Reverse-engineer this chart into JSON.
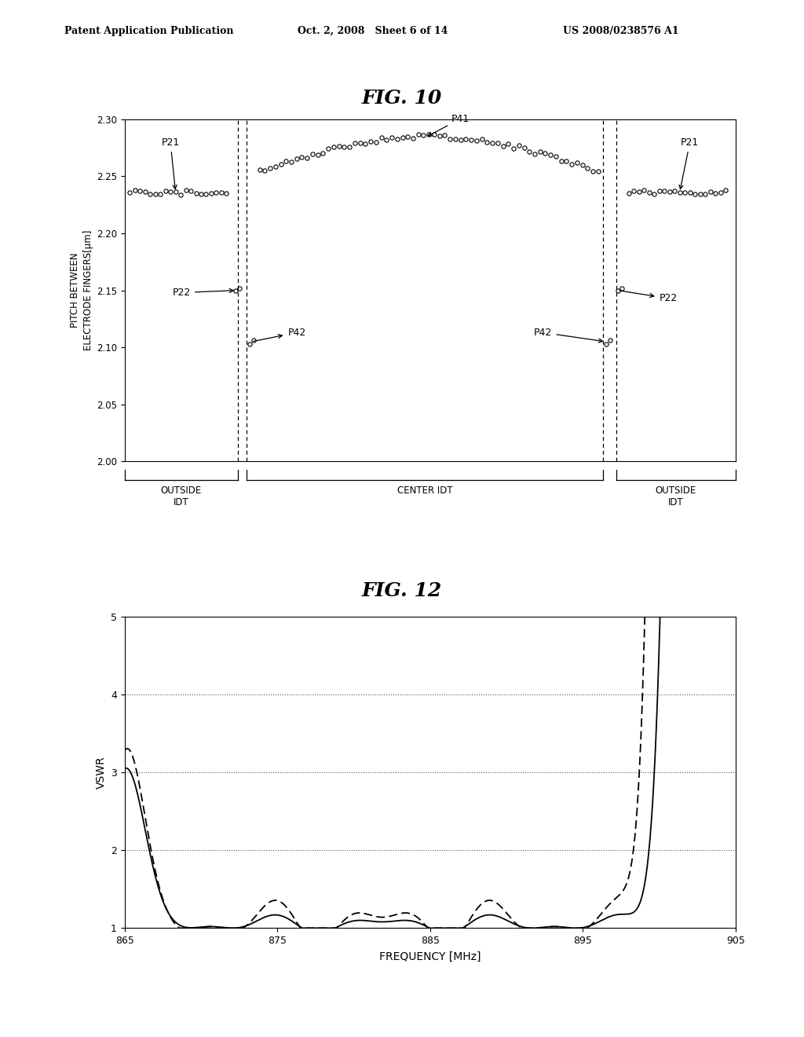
{
  "header_left": "Patent Application Publication",
  "header_mid": "Oct. 2, 2008   Sheet 6 of 14",
  "header_right": "US 2008/0238576 A1",
  "fig10_title": "FIG. 10",
  "fig12_title": "FIG. 12",
  "fig10_ylabel": "PITCH BETWEEN\nELECTRODE FINGERS[μm]",
  "fig10_ylim": [
    2.0,
    2.3
  ],
  "fig10_yticks": [
    2.0,
    2.05,
    2.1,
    2.15,
    2.2,
    2.25,
    2.3
  ],
  "fig12_xlabel": "FREQUENCY [MHz]",
  "fig12_ylabel": "VSWR",
  "fig12_ylim": [
    1,
    5
  ],
  "fig12_yticks": [
    1,
    2,
    3,
    4,
    5
  ],
  "fig12_xlim": [
    865,
    905
  ],
  "fig12_xticks": [
    865,
    875,
    885,
    895,
    905
  ],
  "outside_idt_label": "OUTSIDE\nIDT",
  "center_idt_label": "CENTER IDT",
  "outside_idt_label2": "OUTSIDE\nIDT",
  "bg_color": "#ffffff"
}
